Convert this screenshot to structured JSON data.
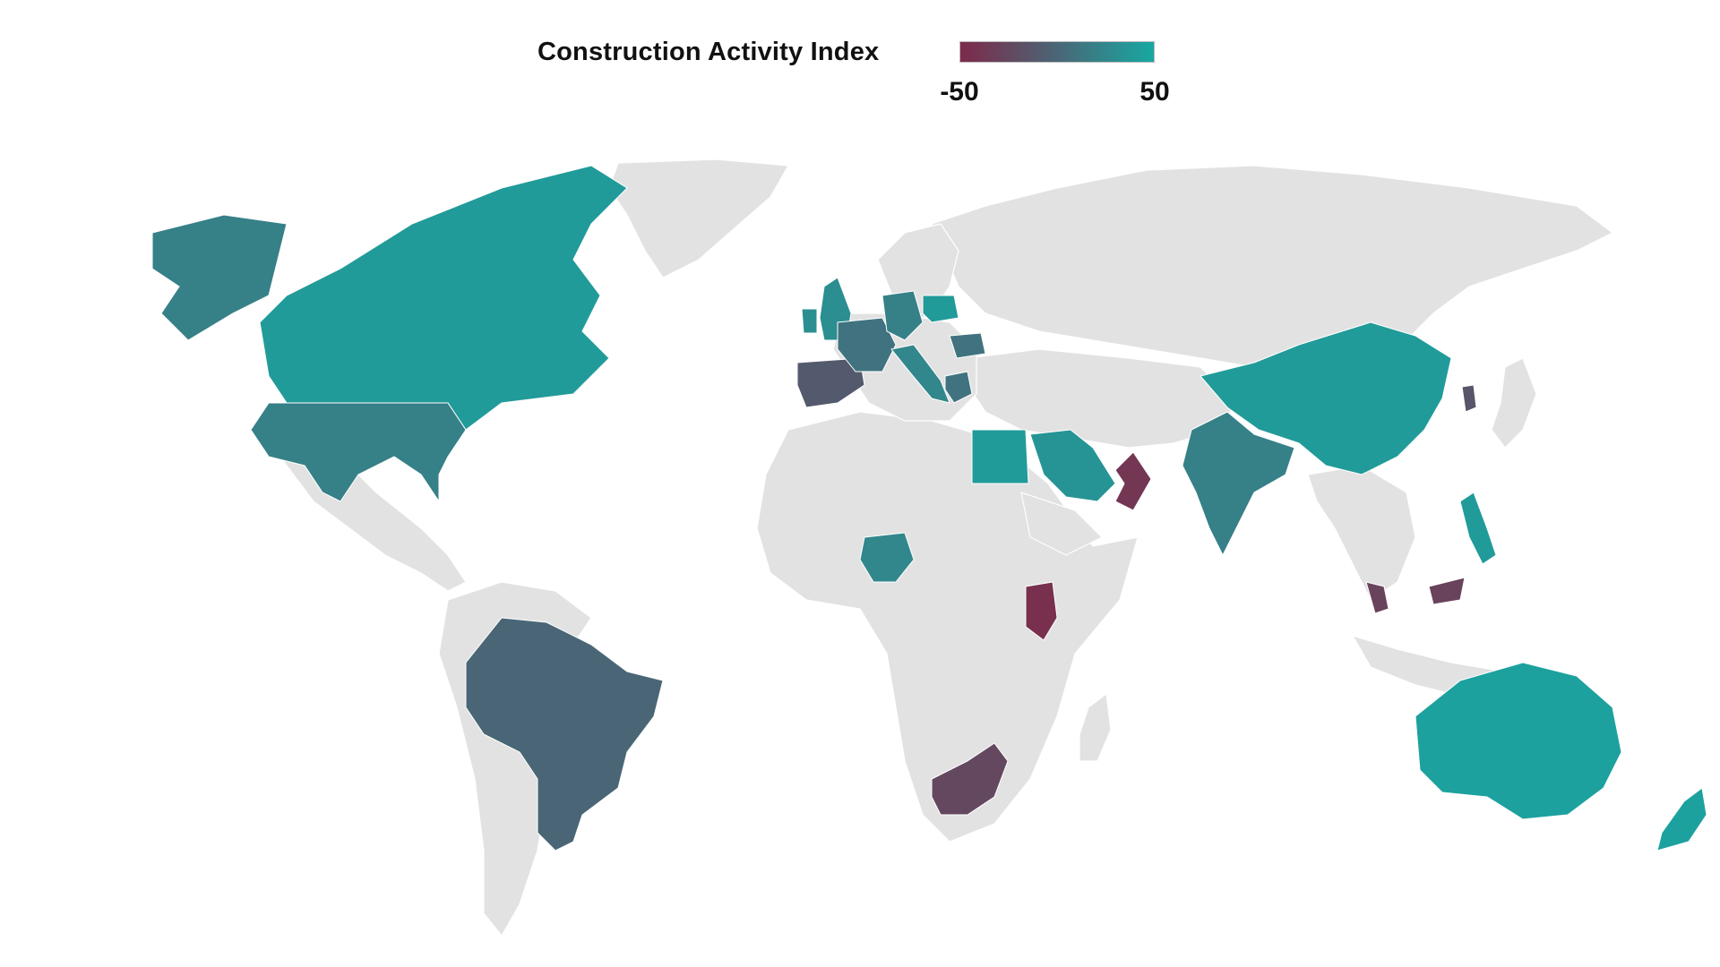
{
  "legend": {
    "title": "Construction Activity Index",
    "min_label": "-50",
    "max_label": "50",
    "min": -50,
    "max": 50,
    "color_low": "#7d2a4a",
    "color_mid": "#4a6676",
    "color_high": "#17a8a2"
  },
  "map": {
    "background_land_color": "#e2e2e2",
    "highlighted_countries": [
      {
        "name": "Canada",
        "value": 40
      },
      {
        "name": "United States",
        "value": 20
      },
      {
        "name": "Alaska (US)",
        "value": 20
      },
      {
        "name": "Brazil",
        "value": 0
      },
      {
        "name": "United Kingdom",
        "value": 30
      },
      {
        "name": "Ireland",
        "value": 30
      },
      {
        "name": "Spain",
        "value": -10
      },
      {
        "name": "France",
        "value": 10
      },
      {
        "name": "Germany",
        "value": 20
      },
      {
        "name": "Poland",
        "value": 40
      },
      {
        "name": "Italy",
        "value": 25
      },
      {
        "name": "Romania",
        "value": 10
      },
      {
        "name": "Greece",
        "value": 10
      },
      {
        "name": "Egypt",
        "value": 40
      },
      {
        "name": "Saudi Arabia",
        "value": 35
      },
      {
        "name": "Oman",
        "value": -40
      },
      {
        "name": "Nigeria",
        "value": 25
      },
      {
        "name": "Kenya",
        "value": -45
      },
      {
        "name": "South Africa",
        "value": -25
      },
      {
        "name": "India",
        "value": 20
      },
      {
        "name": "China",
        "value": 40
      },
      {
        "name": "South Korea",
        "value": -15
      },
      {
        "name": "Philippines",
        "value": 40
      },
      {
        "name": "Malaysia",
        "value": -30
      },
      {
        "name": "Australia",
        "value": 45
      },
      {
        "name": "New Zealand",
        "value": 45
      }
    ]
  }
}
